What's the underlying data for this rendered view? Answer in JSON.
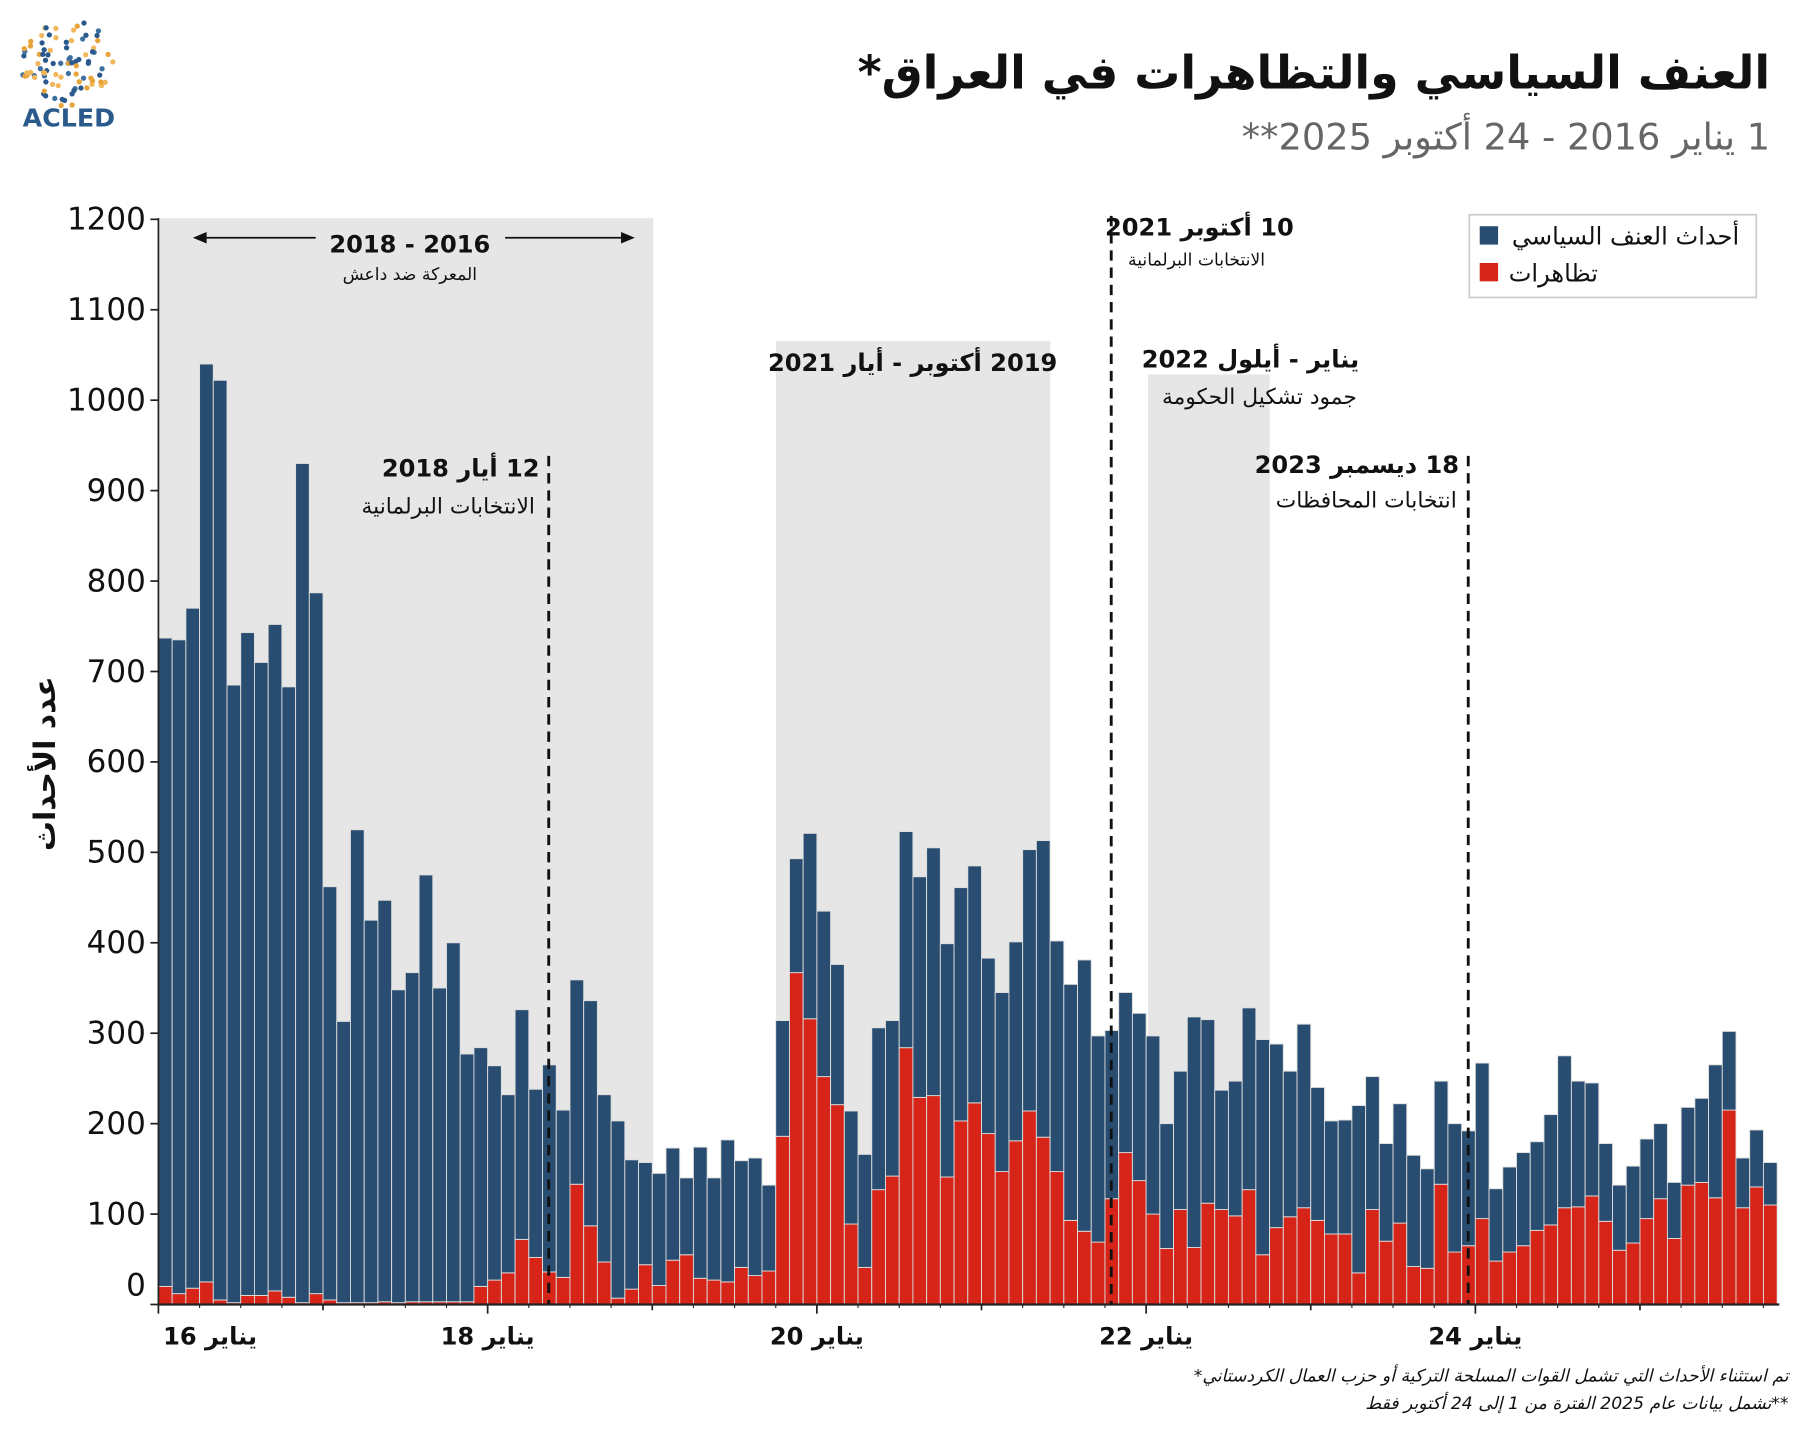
{
  "logo": {
    "text": "ACLED"
  },
  "header": {
    "title": "العنف السياسي والتظاهرات في العراق*",
    "subtitle": "1 يناير 2016 - 24 أكتوبر 2025**"
  },
  "legend": {
    "items": [
      {
        "label": "أحداث العنف السياسي",
        "color": "#284d70"
      },
      {
        "label": "تظاهرات",
        "color": "#d62418"
      }
    ]
  },
  "annotations": {
    "isis_period": {
      "title": "2018 - 2016",
      "subtitle": "المعركة ضد داعش"
    },
    "election_2018": {
      "title": "12 أيار 2018",
      "subtitle": "الانتخابات البرلمانية"
    },
    "protests_2019": {
      "title": "2019 أكتوبر - أيار 2021"
    },
    "election_2021": {
      "title": "10 أكتوبر 2021",
      "subtitle": "الانتخابات البرلمانية"
    },
    "deadlock_2022": {
      "title": "يناير - أيلول 2022",
      "subtitle": "جمود تشكيل الحكومة"
    },
    "election_2023": {
      "title": "18 ديسمبر 2023",
      "subtitle": "انتخابات المحافظات"
    }
  },
  "footnotes": [
    "تم استثناء الأحداث التي تشمل القوات المسلحة التركية أو حزب العمال الكردستاني*",
    "**تشمل بيانات عام 2025 الفترة من 1 إلى 24 أكتوبر فقط"
  ],
  "chart_data": {
    "type": "bar",
    "stacked": true,
    "ylabel": "عدد الأحداث",
    "ylim": [
      0,
      1200
    ],
    "yticks": [
      0,
      100,
      200,
      300,
      400,
      500,
      600,
      700,
      800,
      900,
      1000,
      1100,
      1200
    ],
    "xtick_labels": [
      "يناير 16",
      "يناير 18",
      "يناير 20",
      "يناير 22",
      "يناير 24"
    ],
    "legend_position": "top-right",
    "grid": false,
    "series": [
      {
        "name": "أحداث العنف السياسي",
        "color": "#284d70"
      },
      {
        "name": "تظاهرات",
        "color": "#d62418"
      }
    ],
    "monthly": [
      {
        "year": 2016,
        "political_violence": [
          717,
          723,
          752,
          1015,
          1017,
          683,
          733,
          700,
          737,
          675,
          928,
          775
        ],
        "protests": [
          20,
          12,
          18,
          25,
          5,
          2,
          10,
          10,
          15,
          8,
          2,
          12
        ]
      },
      {
        "year": 2017,
        "political_violence": [
          457,
          311,
          523,
          423,
          444,
          346,
          364,
          472,
          347,
          397,
          274,
          264
        ],
        "protests": [
          5,
          2,
          2,
          2,
          3,
          2,
          3,
          3,
          3,
          3,
          3,
          20
        ]
      },
      {
        "year": 2018,
        "political_violence": [
          237,
          197,
          254,
          186,
          229,
          185,
          226,
          249,
          185,
          196,
          143,
          113
        ],
        "protests": [
          27,
          35,
          72,
          52,
          36,
          30,
          133,
          87,
          47,
          7,
          17,
          44
        ]
      },
      {
        "year": 2019,
        "political_violence": [
          124,
          124,
          85,
          145,
          113,
          157,
          118,
          130,
          95,
          128,
          126,
          205
        ],
        "protests": [
          21,
          49,
          55,
          29,
          27,
          25,
          41,
          32,
          37,
          186,
          367,
          316
        ]
      },
      {
        "year": 2020,
        "political_violence": [
          183,
          155,
          125,
          125,
          179,
          172,
          239,
          244,
          274,
          258,
          258,
          262
        ],
        "protests": [
          252,
          221,
          89,
          41,
          127,
          142,
          284,
          229,
          231,
          141,
          203,
          223
        ]
      },
      {
        "year": 2021,
        "political_violence": [
          194,
          198,
          220,
          289,
          328,
          255,
          261,
          300,
          228,
          186,
          177,
          185
        ],
        "protests": [
          189,
          147,
          181,
          214,
          185,
          147,
          93,
          81,
          69,
          117,
          168,
          137
        ]
      },
      {
        "year": 2022,
        "political_violence": [
          197,
          138,
          153,
          255,
          203,
          132,
          149,
          201,
          238,
          203,
          161,
          203
        ],
        "protests": [
          100,
          62,
          105,
          63,
          112,
          105,
          98,
          127,
          55,
          85,
          97,
          107
        ]
      },
      {
        "year": 2023,
        "political_violence": [
          147,
          125,
          126,
          185,
          147,
          108,
          132,
          123,
          110,
          114,
          142,
          127
        ],
        "protests": [
          93,
          78,
          78,
          35,
          105,
          70,
          90,
          42,
          40,
          133,
          58,
          65
        ]
      },
      {
        "year": 2024,
        "political_violence": [
          172,
          80,
          94,
          103,
          98,
          122,
          168,
          139,
          125,
          86,
          72,
          85
        ],
        "protests": [
          95,
          48,
          58,
          65,
          82,
          88,
          107,
          108,
          120,
          92,
          60,
          68
        ]
      },
      {
        "year": 2025,
        "political_violence": [
          88,
          83,
          62,
          86,
          93,
          147,
          87,
          55,
          63,
          47
        ],
        "protests": [
          95,
          117,
          73,
          132,
          135,
          118,
          215,
          107,
          130,
          110
        ]
      }
    ]
  }
}
